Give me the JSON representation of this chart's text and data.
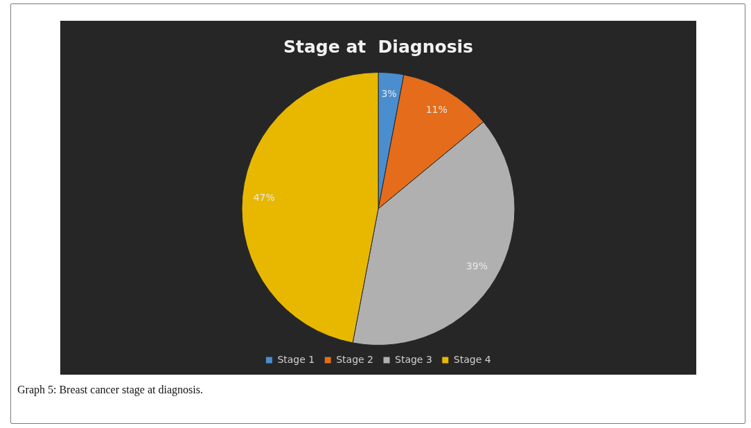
{
  "chart_data": {
    "type": "pie",
    "title": "Stage at  Diagnosis",
    "categories": [
      "Stage 1",
      "Stage 2",
      "Stage 3",
      "Stage 4"
    ],
    "values": [
      3,
      11,
      39,
      47
    ],
    "colors": [
      "#4a8ed0",
      "#e46c1a",
      "#b0b0b0",
      "#e8b800"
    ],
    "value_labels": [
      "3%",
      "11%",
      "39%",
      "47%"
    ],
    "legend": "bottom",
    "annotations": [
      "Graph 5: Breast cancer stage at diagnosis."
    ]
  }
}
